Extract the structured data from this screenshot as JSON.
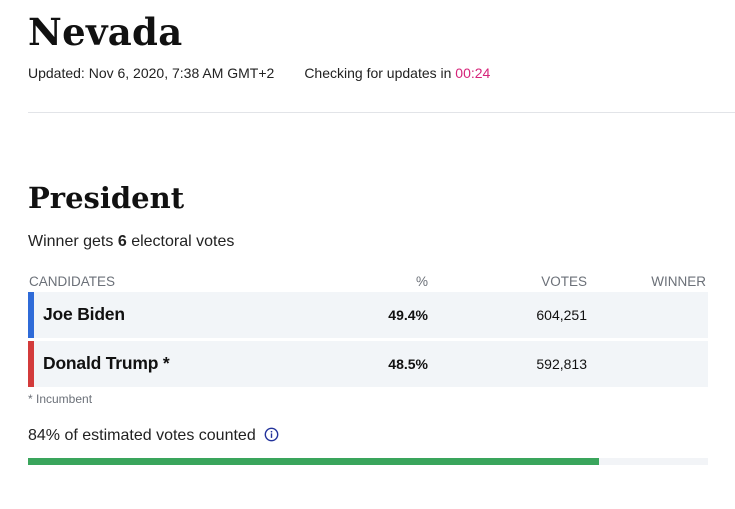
{
  "header": {
    "state": "Nevada",
    "updated": "Updated: Nov 6, 2020, 7:38 AM GMT+2",
    "checking_label": "Checking for updates in",
    "countdown": "00:24"
  },
  "race": {
    "title": "President",
    "electoral_prefix": "Winner gets",
    "electoral_votes": "6",
    "electoral_suffix": "electoral votes"
  },
  "table": {
    "headers": {
      "candidates": "CANDIDATES",
      "pct": "%",
      "votes": "VOTES",
      "winner": "WINNER"
    },
    "rows": [
      {
        "name": "Joe Biden",
        "pct": "49.4%",
        "votes": "604,251",
        "winner": "",
        "color": "#2f6bd8"
      },
      {
        "name": "Donald Trump *",
        "pct": "48.5%",
        "votes": "592,813",
        "winner": "",
        "color": "#d33b3b"
      }
    ]
  },
  "footnote": "* Incumbent",
  "counted": {
    "pct": "84%",
    "label": "of estimated votes counted",
    "fraction": 0.84,
    "info_icon": "info-icon"
  },
  "colors": {
    "countdown": "#d6247a",
    "progress": "#3aa55c",
    "democrat": "#2f6bd8",
    "republican": "#d33b3b"
  }
}
